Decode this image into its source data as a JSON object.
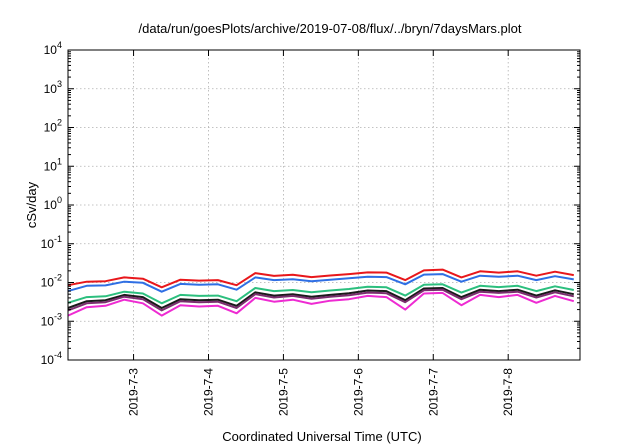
{
  "chart_data": {
    "type": "line",
    "title": "/data/run/goesPlots/archive/2019-07-08/flux/../bryn/7daysMars.plot",
    "xlabel": "Coordinated Universal Time (UTC)",
    "ylabel": "cSv/day",
    "yscale": "log",
    "ylim": [
      0.0001,
      10000
    ],
    "y_ticks": [
      {
        "base": "10",
        "exp": "-4",
        "value": 0.0001
      },
      {
        "base": "10",
        "exp": "-3",
        "value": 0.001
      },
      {
        "base": "10",
        "exp": "-2",
        "value": 0.01
      },
      {
        "base": "10",
        "exp": "-1",
        "value": 0.1
      },
      {
        "base": "10",
        "exp": "0",
        "value": 1
      },
      {
        "base": "10",
        "exp": "1",
        "value": 10
      },
      {
        "base": "10",
        "exp": "2",
        "value": 100
      },
      {
        "base": "10",
        "exp": "3",
        "value": 1000
      },
      {
        "base": "10",
        "exp": "4",
        "value": 10000
      }
    ],
    "xlim": [
      "2019-07-02T03:00",
      "2019-07-08T23:00"
    ],
    "x_ticks": [
      {
        "label": "2019-7-3",
        "value": "2019-07-03"
      },
      {
        "label": "2019-7-4",
        "value": "2019-07-04"
      },
      {
        "label": "2019-7-5",
        "value": "2019-07-05"
      },
      {
        "label": "2019-7-6",
        "value": "2019-07-06"
      },
      {
        "label": "2019-7-7",
        "value": "2019-07-07"
      },
      {
        "label": "2019-7-8",
        "value": "2019-07-08"
      }
    ],
    "grid": true,
    "x": [
      "2019-07-02T03:00",
      "2019-07-02T09:00",
      "2019-07-02T15:00",
      "2019-07-02T21:00",
      "2019-07-03T03:00",
      "2019-07-03T09:00",
      "2019-07-03T15:00",
      "2019-07-03T21:00",
      "2019-07-04T03:00",
      "2019-07-04T09:00",
      "2019-07-04T15:00",
      "2019-07-04T21:00",
      "2019-07-05T03:00",
      "2019-07-05T09:00",
      "2019-07-05T15:00",
      "2019-07-05T21:00",
      "2019-07-06T03:00",
      "2019-07-06T09:00",
      "2019-07-06T15:00",
      "2019-07-06T21:00",
      "2019-07-07T03:00",
      "2019-07-07T09:00",
      "2019-07-07T15:00",
      "2019-07-07T21:00",
      "2019-07-08T03:00",
      "2019-07-08T09:00",
      "2019-07-08T15:00",
      "2019-07-08T21:00"
    ],
    "series": [
      {
        "color": "#e8171b",
        "values": [
          0.0085,
          0.0105,
          0.0108,
          0.0135,
          0.0125,
          0.0075,
          0.0118,
          0.0112,
          0.0115,
          0.0085,
          0.0175,
          0.0148,
          0.0158,
          0.0138,
          0.0152,
          0.0165,
          0.0182,
          0.018,
          0.0115,
          0.0205,
          0.0215,
          0.0135,
          0.0195,
          0.018,
          0.0195,
          0.015,
          0.019,
          0.0155
        ]
      },
      {
        "color": "#2f6fe4",
        "values": [
          0.006,
          0.0082,
          0.0084,
          0.0105,
          0.0098,
          0.0058,
          0.0092,
          0.0088,
          0.009,
          0.0065,
          0.0135,
          0.0115,
          0.0122,
          0.0108,
          0.0118,
          0.0128,
          0.014,
          0.0138,
          0.009,
          0.016,
          0.0165,
          0.0105,
          0.015,
          0.014,
          0.015,
          0.0115,
          0.0145,
          0.012
        ]
      },
      {
        "color": "#2cbf7e",
        "values": [
          0.003,
          0.0042,
          0.0044,
          0.0058,
          0.0052,
          0.0029,
          0.0048,
          0.0045,
          0.0046,
          0.0033,
          0.0072,
          0.006,
          0.0064,
          0.0056,
          0.0062,
          0.0068,
          0.0078,
          0.0075,
          0.0046,
          0.0088,
          0.009,
          0.0055,
          0.0082,
          0.0076,
          0.0082,
          0.006,
          0.008,
          0.0064
        ]
      },
      {
        "color": "#1a1a1a",
        "values": [
          0.0022,
          0.0033,
          0.0035,
          0.0048,
          0.0042,
          0.0022,
          0.0037,
          0.0035,
          0.0036,
          0.0025,
          0.0056,
          0.0046,
          0.005,
          0.0043,
          0.0048,
          0.0053,
          0.0062,
          0.006,
          0.0035,
          0.007,
          0.0072,
          0.0042,
          0.0065,
          0.006,
          0.0065,
          0.0046,
          0.0063,
          0.005
        ]
      },
      {
        "color": "#7a2e6e",
        "values": [
          0.0019,
          0.0029,
          0.0031,
          0.0043,
          0.0037,
          0.0019,
          0.0033,
          0.0031,
          0.0032,
          0.0022,
          0.005,
          0.0041,
          0.0045,
          0.0038,
          0.0043,
          0.0047,
          0.0055,
          0.0053,
          0.0031,
          0.0063,
          0.0065,
          0.0037,
          0.0058,
          0.0054,
          0.0058,
          0.0041,
          0.0056,
          0.0044
        ]
      },
      {
        "color": "#ee2bd2",
        "values": [
          0.0014,
          0.0023,
          0.0025,
          0.0036,
          0.0029,
          0.0014,
          0.0026,
          0.0024,
          0.0025,
          0.0016,
          0.004,
          0.0032,
          0.0036,
          0.0028,
          0.0034,
          0.0037,
          0.0045,
          0.0042,
          0.002,
          0.0052,
          0.0054,
          0.0026,
          0.0048,
          0.0042,
          0.0048,
          0.003,
          0.0045,
          0.0033
        ]
      }
    ]
  }
}
